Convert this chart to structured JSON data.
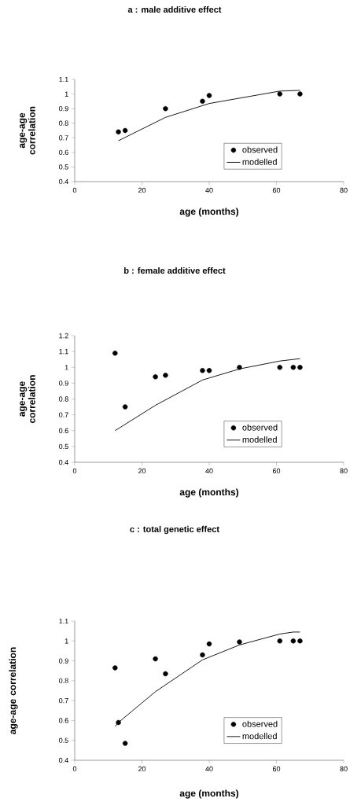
{
  "chart_data": [
    {
      "type": "scatter",
      "title": "a : male additive effect",
      "xlabel": "age (months)",
      "ylabel": "age-age correlation",
      "xlim": [
        0,
        80
      ],
      "xticks": [
        0,
        20,
        40,
        60,
        80
      ],
      "ylim": [
        0.4,
        1.1
      ],
      "yticks": [
        0.4,
        0.5,
        0.6,
        0.7,
        0.8,
        0.9,
        1,
        1.1
      ],
      "legend": "bottom right",
      "grid": false,
      "series": [
        {
          "name": "observed",
          "marker": "circle",
          "color": "#000000",
          "x": [
            13,
            15,
            27,
            38,
            40,
            61,
            67
          ],
          "values": [
            0.74,
            0.75,
            0.9,
            0.95,
            0.99,
            1.0,
            1.0
          ]
        },
        {
          "name": "modelled",
          "type": "line",
          "marker": "none",
          "line_style": "solid",
          "color": "#000000",
          "x": [
            13,
            27,
            40,
            61,
            67
          ],
          "values": [
            0.68,
            0.84,
            0.935,
            1.02,
            1.025
          ]
        }
      ]
    },
    {
      "type": "scatter",
      "title": "b : female additive effect",
      "xlabel": "age (months)",
      "ylabel": "age-age correlation",
      "xlim": [
        0,
        80
      ],
      "xticks": [
        0,
        20,
        40,
        60,
        80
      ],
      "ylim": [
        0.4,
        1.2
      ],
      "yticks": [
        0.4,
        0.5,
        0.6,
        0.7,
        0.8,
        0.9,
        1,
        1.1,
        1.2
      ],
      "legend": "bottom right",
      "grid": false,
      "series": [
        {
          "name": "observed",
          "marker": "circle",
          "color": "#000000",
          "x": [
            12,
            15,
            24,
            27,
            38,
            40,
            49,
            61,
            65,
            67
          ],
          "values": [
            1.09,
            0.75,
            0.94,
            0.95,
            0.98,
            0.98,
            1.0,
            1.0,
            1.0,
            1.0
          ]
        },
        {
          "name": "modelled",
          "type": "line",
          "marker": "none",
          "line_style": "solid",
          "color": "#000000",
          "x": [
            12,
            24,
            38,
            49,
            61,
            65,
            67
          ],
          "values": [
            0.6,
            0.76,
            0.92,
            0.99,
            1.04,
            1.05,
            1.055
          ]
        }
      ]
    },
    {
      "type": "scatter",
      "title": "c : total genetic effect",
      "xlabel": "age (months)",
      "ylabel": "age-age correlation",
      "xlim": [
        0,
        80
      ],
      "xticks": [
        0,
        20,
        40,
        60,
        80
      ],
      "ylim": [
        0.4,
        1.1
      ],
      "yticks": [
        0.4,
        0.5,
        0.6,
        0.7,
        0.8,
        0.9,
        1,
        1.1
      ],
      "legend": "bottom right",
      "grid": false,
      "series": [
        {
          "name": "observed",
          "marker": "circle",
          "color": "#000000",
          "x": [
            12,
            13,
            15,
            24,
            27,
            38,
            40,
            49,
            61,
            65,
            67
          ],
          "values": [
            0.865,
            0.59,
            0.485,
            0.91,
            0.835,
            0.93,
            0.985,
            0.995,
            1.0,
            1.0,
            1.0
          ]
        },
        {
          "name": "modelled",
          "type": "line",
          "marker": "none",
          "line_style": "solid",
          "color": "#000000",
          "x": [
            12,
            13,
            24,
            38,
            49,
            61,
            65,
            67
          ],
          "values": [
            0.57,
            0.59,
            0.745,
            0.905,
            0.98,
            1.035,
            1.045,
            1.045
          ]
        }
      ]
    }
  ]
}
